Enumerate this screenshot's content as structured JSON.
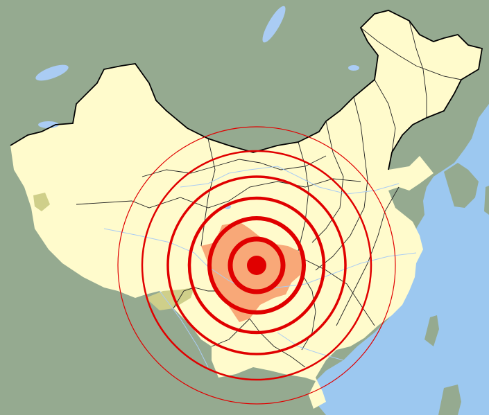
{
  "map": {
    "colors": {
      "sea": "#9cc8f0",
      "neighbor_land": "#95aa90",
      "highlight_land": "#fffbcc",
      "disputed_area": "#cfcf8a",
      "epicenter_province": "#f8a878",
      "rings": "#e00000",
      "national_border": "#000000",
      "internal_borders": "#202020",
      "rivers_lakes": "#aaccf4"
    },
    "epicenter_marker": "filled-circle"
  }
}
